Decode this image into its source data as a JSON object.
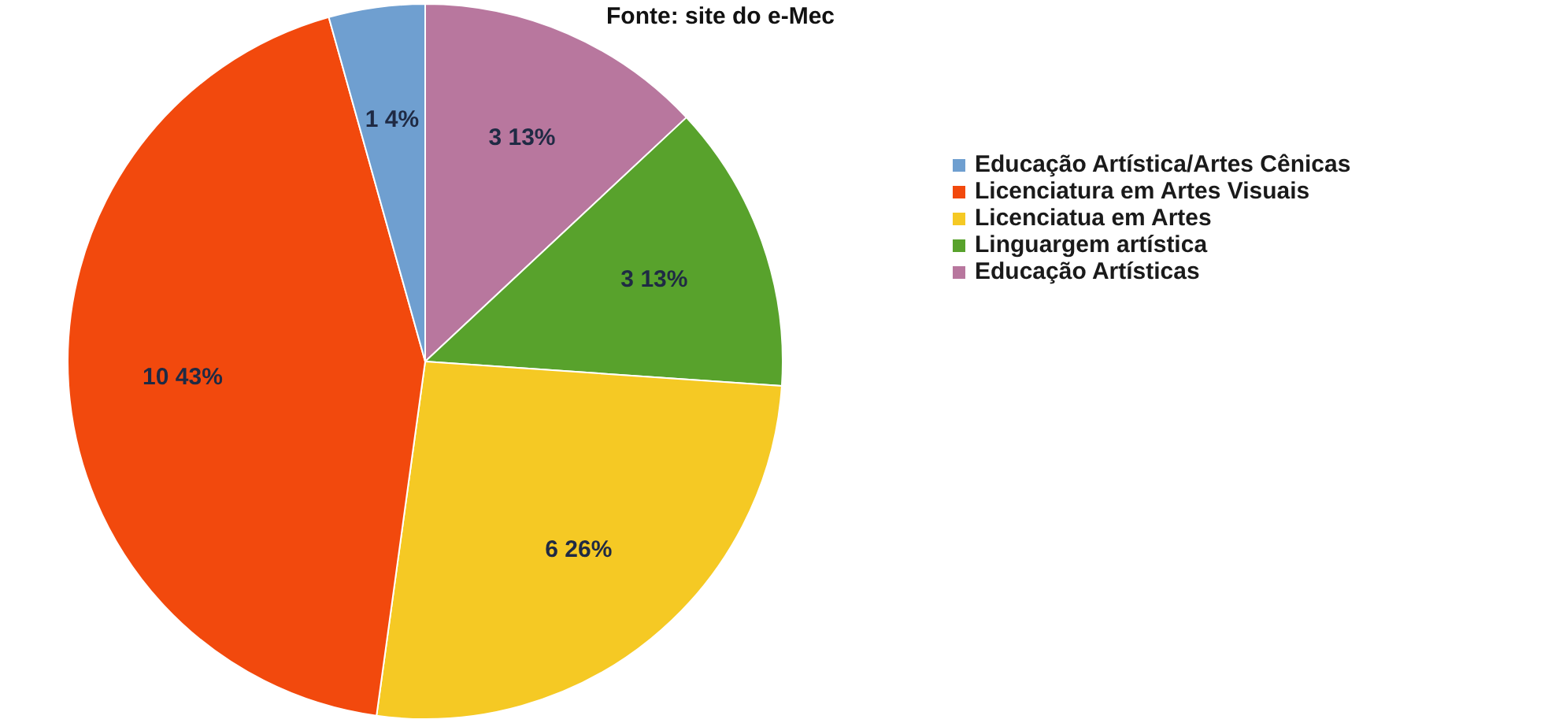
{
  "chart_data": {
    "type": "pie",
    "categories": [
      "Educação Artística/Artes Cênicas",
      "Licenciatura em Artes Visuais",
      "Licenciatua em Artes",
      "Linguargem artística",
      "Educação Artísticas"
    ],
    "values": [
      1,
      10,
      6,
      3,
      3
    ],
    "value_labels": [
      "1 4%",
      "10 43%",
      "6 26%",
      "3 13%",
      "3 13%"
    ],
    "colors": [
      "#6f9fd0",
      "#f2490d",
      "#f5c924",
      "#58a22c",
      "#b8779e"
    ],
    "annotations": [
      "Fonte: site do e-Mec"
    ],
    "legend": "right"
  }
}
